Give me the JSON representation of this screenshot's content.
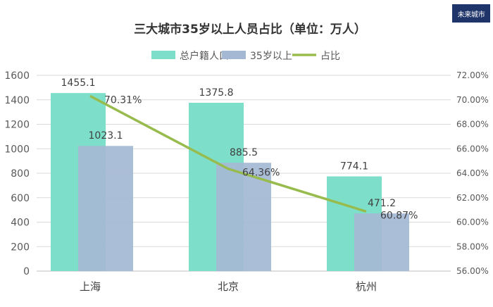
{
  "chart_data": {
    "type": "bar",
    "title": "三大城市35岁以上人员占比（单位：万人）",
    "categories": [
      "上海",
      "北京",
      "杭州"
    ],
    "series": [
      {
        "name": "总户籍人口",
        "kind": "bar",
        "axis": "left",
        "color": "#7ddfc9",
        "values": [
          1455.1,
          1375.8,
          774.1
        ],
        "labels": [
          "1455.1",
          "1375.8",
          "774.1"
        ]
      },
      {
        "name": "35岁以上",
        "kind": "bar",
        "axis": "left",
        "color": "#a4b8d4",
        "values": [
          1023.1,
          885.5,
          471.2
        ],
        "labels": [
          "1023.1",
          "885.5",
          "471.2"
        ]
      },
      {
        "name": "占比",
        "kind": "line",
        "axis": "right",
        "color": "#98bb4e",
        "values": [
          70.31,
          64.36,
          60.87
        ],
        "labels": [
          "70.31%",
          "64.36%",
          "60.87%"
        ]
      }
    ],
    "y_left": {
      "min": 0,
      "max": 1600,
      "ticks": [
        "0",
        "200",
        "400",
        "600",
        "800",
        "1000",
        "1200",
        "1400",
        "1600"
      ]
    },
    "y_right": {
      "min": 56,
      "max": 72,
      "ticks": [
        "56.00%",
        "58.00%",
        "60.00%",
        "62.00%",
        "64.00%",
        "66.00%",
        "68.00%",
        "70.00%",
        "72.00%"
      ]
    },
    "grid": true,
    "legend_position": "top"
  },
  "brand": {
    "logo_text": "未来城市",
    "logo_color": "#1f3468"
  }
}
